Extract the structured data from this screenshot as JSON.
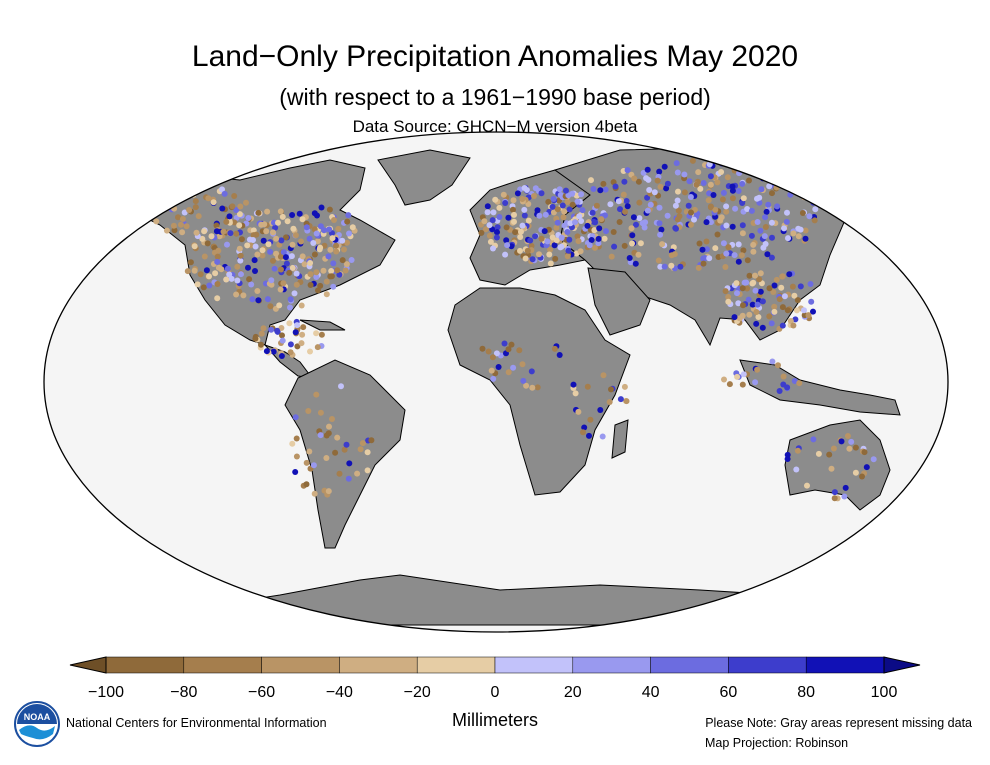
{
  "title": "Land−Only Precipitation Anomalies May 2020",
  "subtitle": "(with respect to a 1961−1990 base period)",
  "source": "Data Source: GHCN−M version 4beta",
  "legend": {
    "unit_label": "Millimeters",
    "ticks": [
      "−100",
      "−80",
      "−60",
      "−40",
      "−20",
      "0",
      "20",
      "40",
      "60",
      "80",
      "100"
    ],
    "colors": [
      "#8f6a3a",
      "#a57e4d",
      "#b99465",
      "#cfae82",
      "#e6cda5",
      "#c2c2fa",
      "#9999ef",
      "#6c6ce0",
      "#3d3dcc",
      "#1111b6"
    ],
    "under_color": "#6e4f27",
    "over_color": "#0b0b86"
  },
  "footer": {
    "organization": "National Centers for Environmental Information",
    "note": "Please Note: Gray areas represent missing data",
    "projection": "Map Projection: Robinson"
  },
  "logo_text": "NOAA",
  "colors": {
    "ocean": "#f5f5f5",
    "land": "#8c8c8c",
    "border": "#000000"
  }
}
